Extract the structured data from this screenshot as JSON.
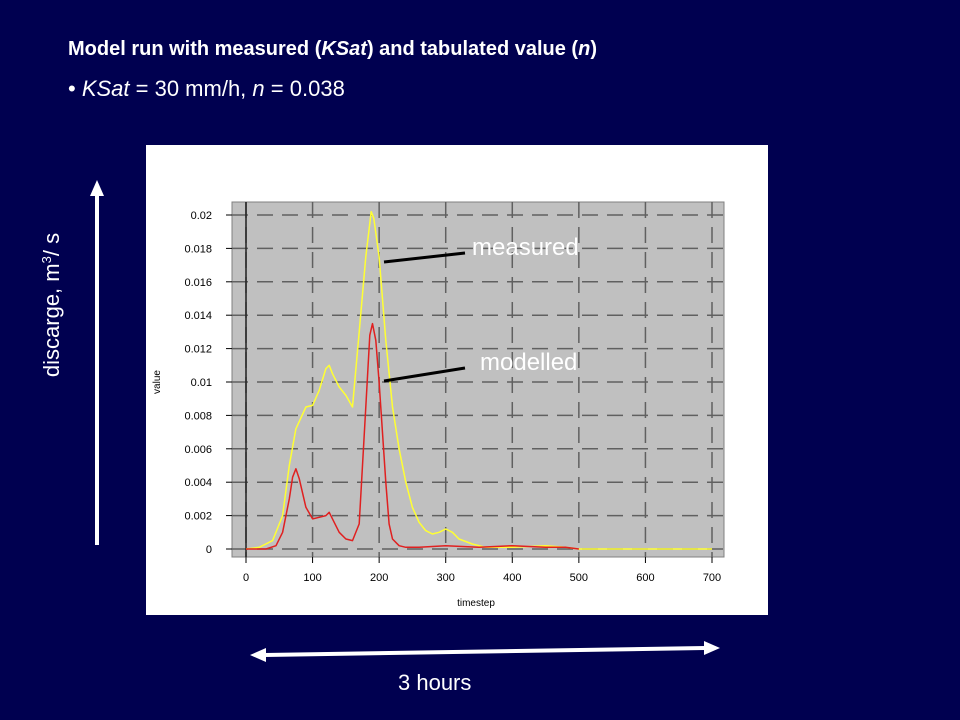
{
  "slide": {
    "title_before": "Model run with measured (",
    "title_ksat": "KSat",
    "title_middle": ") and tabulated value (",
    "title_n": "n",
    "title_after": ")",
    "bullet_char": "•",
    "bullet_ksat": "KSat",
    "bullet_ksat_value": " = 30 mm/h, ",
    "bullet_n": "n",
    "bullet_n_value": " = 0.038",
    "y_arrow_label_main": "discarge, m",
    "y_arrow_label_sup": "3",
    "y_arrow_label_tail": "/ s",
    "x_arrow_label": "3 hours",
    "callout_measured": "measured",
    "callout_modelled": "modelled"
  },
  "chart_data": {
    "type": "line",
    "xlabel": "timestep",
    "ylabel": "value",
    "xlim": [
      0,
      700
    ],
    "ylim": [
      0,
      0.02
    ],
    "xticks": [
      0,
      100,
      200,
      300,
      400,
      500,
      600,
      700
    ],
    "yticks": [
      0,
      0.002,
      0.004,
      0.006,
      0.008,
      0.01,
      0.012,
      0.014,
      0.016,
      0.018,
      0.02
    ],
    "ytick_labels": [
      "0",
      "0.002",
      "0.004",
      "0.006",
      "0.008",
      "0.01",
      "0.012",
      "0.014",
      "0.016",
      "0.018",
      "0.02"
    ],
    "grid": true,
    "background": "#c0c0c0",
    "series": [
      {
        "name": "measured",
        "color": "#ffff33",
        "x": [
          0,
          20,
          40,
          55,
          65,
          75,
          90,
          100,
          110,
          120,
          125,
          130,
          140,
          150,
          160,
          170,
          180,
          188,
          192,
          200,
          210,
          220,
          230,
          240,
          250,
          260,
          270,
          280,
          290,
          300,
          310,
          320,
          340,
          360,
          400,
          450,
          480,
          500,
          600,
          700
        ],
        "y": [
          0,
          0.0001,
          0.0005,
          0.002,
          0.005,
          0.0072,
          0.0085,
          0.0086,
          0.0095,
          0.0108,
          0.011,
          0.0105,
          0.0097,
          0.0092,
          0.0085,
          0.013,
          0.0175,
          0.0202,
          0.0198,
          0.0175,
          0.0125,
          0.0085,
          0.006,
          0.004,
          0.0025,
          0.0016,
          0.0011,
          0.0009,
          0.001,
          0.0012,
          0.001,
          0.0006,
          0.0003,
          0.0001,
          0.0001,
          0.0002,
          0.0001,
          0,
          0,
          0
        ]
      },
      {
        "name": "modelled",
        "color": "#e02020",
        "x": [
          0,
          30,
          45,
          55,
          65,
          70,
          75,
          80,
          90,
          100,
          110,
          120,
          125,
          130,
          140,
          150,
          160,
          170,
          180,
          186,
          190,
          195,
          200,
          210,
          215,
          220,
          230,
          240,
          260,
          300,
          350,
          400,
          450,
          480,
          500
        ],
        "y": [
          0,
          0,
          0.0002,
          0.001,
          0.003,
          0.0043,
          0.0048,
          0.0042,
          0.0025,
          0.0018,
          0.0019,
          0.002,
          0.0022,
          0.0018,
          0.001,
          0.0006,
          0.0005,
          0.0015,
          0.0085,
          0.0128,
          0.0135,
          0.0125,
          0.01,
          0.004,
          0.0015,
          0.0006,
          0.0002,
          0.0001,
          0.0001,
          0.0002,
          0.0001,
          0.0002,
          0.0001,
          0.0001,
          0
        ]
      }
    ]
  }
}
